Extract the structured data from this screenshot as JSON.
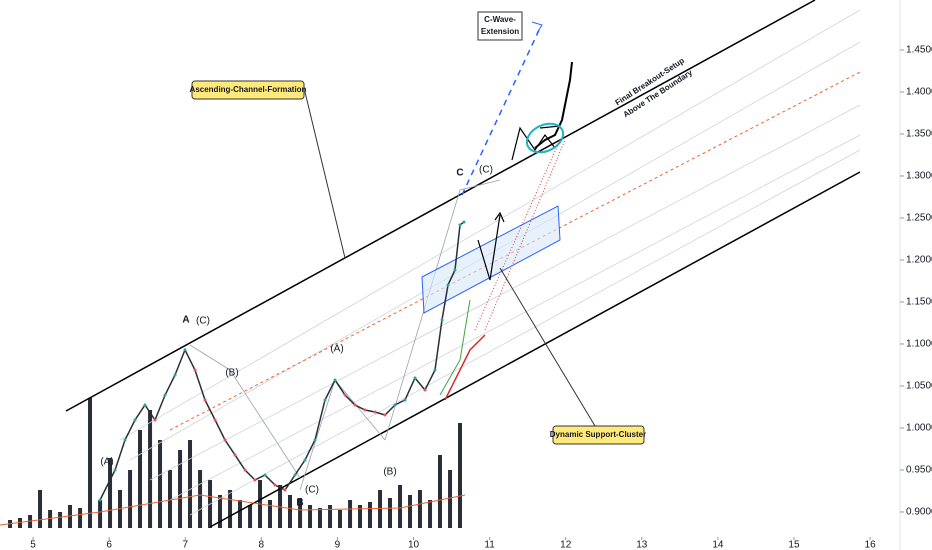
{
  "chart_data": {
    "type": "line",
    "color": "#2a2e39",
    "x": [
      5.88,
      6.078,
      6.209,
      6.34,
      6.472,
      6.603,
      6.735,
      6.866,
      6.997,
      7.129,
      7.26,
      7.392,
      7.523,
      7.654,
      7.786,
      7.917,
      8.049,
      8.18,
      8.311,
      8.443,
      8.574,
      8.706,
      8.837,
      8.968,
      9.1,
      9.231,
      9.363,
      9.494,
      9.625,
      9.757,
      9.888,
      10.02,
      10.151,
      10.283,
      10.375,
      10.453,
      10.545,
      10.611,
      10.664
    ],
    "values": [
      0.9143,
      0.95,
      0.9857,
      1.0095,
      1.0274,
      1.0095,
      1.0393,
      1.0631,
      1.0929,
      1.069,
      1.0333,
      1.0095,
      0.9857,
      0.9679,
      0.95,
      0.9381,
      0.944,
      0.9321,
      0.9262,
      0.944,
      0.9619,
      0.9857,
      1.0333,
      1.0571,
      1.0393,
      1.0274,
      1.0214,
      1.019,
      1.0155,
      1.0274,
      1.0333,
      1.0595,
      1.0452,
      1.069,
      1.1286,
      1.1702,
      1.1881,
      1.2417,
      1.2452
    ],
    "volume": {
      "color": "#2a2e39",
      "x": [
        4.698,
        4.829,
        4.961,
        5.092,
        5.224,
        5.355,
        5.486,
        5.618,
        5.749,
        5.881,
        6.012,
        6.143,
        6.275,
        6.406,
        6.538,
        6.669,
        6.8,
        6.932,
        7.063,
        7.195,
        7.326,
        7.457,
        7.589,
        7.72,
        7.852,
        7.983,
        8.114,
        8.246,
        8.377,
        8.509,
        8.64,
        8.771,
        8.903,
        9.034,
        9.166,
        9.297,
        9.428,
        9.56,
        9.691,
        9.823,
        9.954,
        10.085,
        10.217,
        10.348,
        10.48,
        10.611
      ],
      "values": [
        8,
        10,
        13,
        38,
        18,
        16,
        23,
        20,
        130,
        28,
        70,
        38,
        58,
        98,
        118,
        88,
        58,
        78,
        88,
        58,
        48,
        33,
        38,
        28,
        23,
        48,
        28,
        43,
        33,
        30,
        23,
        20,
        23,
        18,
        28,
        23,
        26,
        38,
        30,
        43,
        33,
        38,
        28,
        73,
        58,
        105
      ]
    },
    "xlim": [
      4.566,
      16.393
    ],
    "ylim": [
      0.8702,
      1.5095
    ],
    "xticks": [
      5,
      6,
      7,
      8,
      9,
      10,
      11,
      12,
      13,
      14,
      15,
      16
    ],
    "yticks": [
      {
        "value": 0.9,
        "label": "0.9000"
      },
      {
        "value": 0.95,
        "label": "0.9500"
      },
      {
        "value": 1.0,
        "label": "1.0000"
      },
      {
        "value": 1.05,
        "label": "1.0500"
      },
      {
        "value": 1.1,
        "label": "1.1000"
      },
      {
        "value": 1.15,
        "label": "1.1500"
      },
      {
        "value": 1.2,
        "label": "1.2000"
      },
      {
        "value": 1.25,
        "label": "1.2500"
      },
      {
        "value": 1.3,
        "label": "1.3000"
      },
      {
        "value": 1.35,
        "label": "1.3500"
      },
      {
        "value": 1.4,
        "label": "1.4000"
      },
      {
        "value": 1.45,
        "label": "1.4500"
      }
    ],
    "annotations": [
      "Ascending-Channel-Formation",
      "Dynamic Support-Cluster",
      "C-Wave-",
      "Extension",
      "Final Breakout-Setup",
      "Above The Boundary"
    ],
    "wave_labels": [
      "A",
      "(C)",
      "(B)",
      "B",
      "(C)",
      "(A)",
      "(B)",
      "C",
      "(C)",
      "(A)"
    ]
  }
}
